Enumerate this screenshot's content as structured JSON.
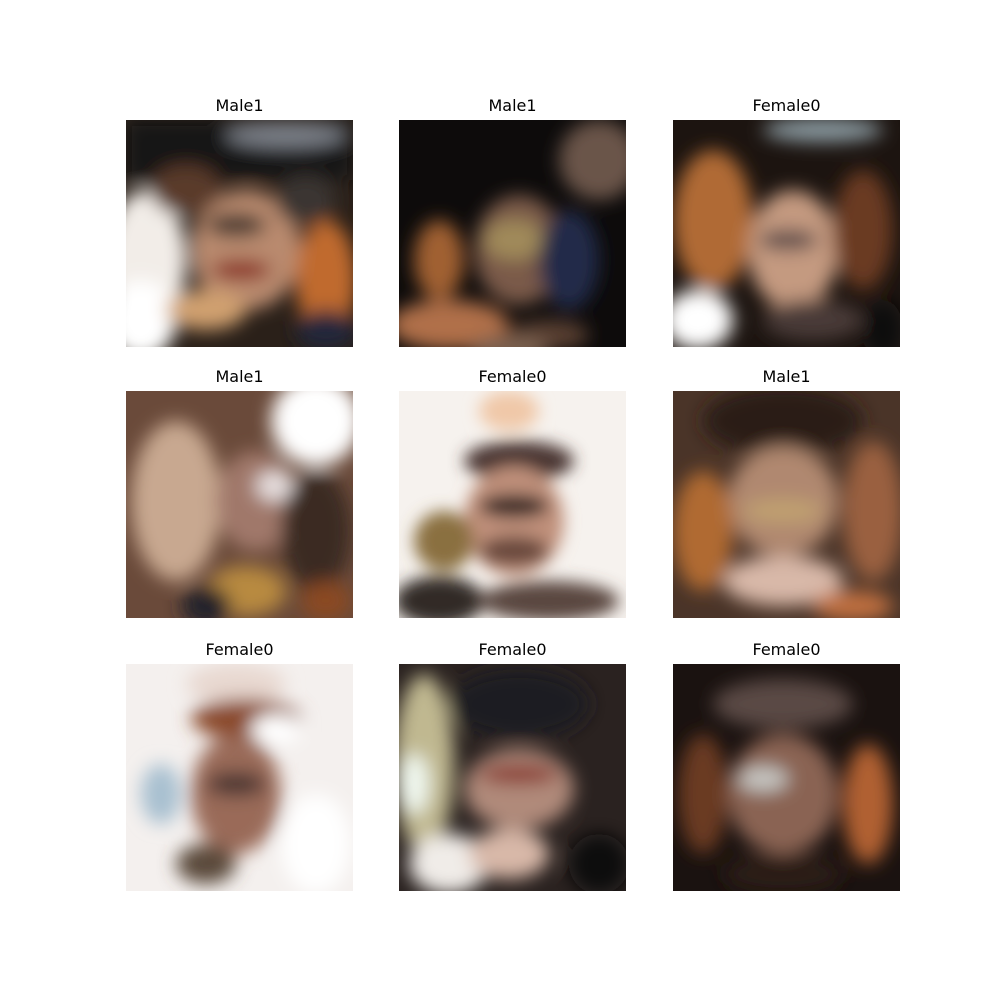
{
  "figure": {
    "panels": [
      {
        "label": "Male1"
      },
      {
        "label": "Male1"
      },
      {
        "label": "Female0"
      },
      {
        "label": "Male1"
      },
      {
        "label": "Female0"
      },
      {
        "label": "Male1"
      },
      {
        "label": "Female0"
      },
      {
        "label": "Female0"
      },
      {
        "label": "Female0"
      }
    ]
  }
}
